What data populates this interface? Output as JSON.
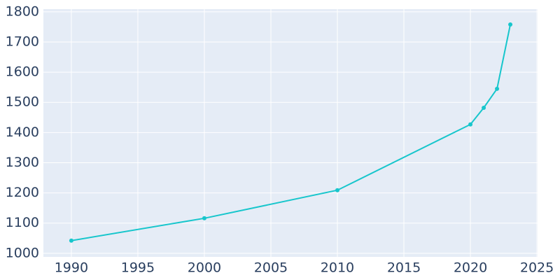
{
  "chart_data": {
    "type": "line",
    "x": [
      1990,
      2000,
      2010,
      2020,
      2021,
      2022,
      2023
    ],
    "series": [
      {
        "color": "#17c6cc",
        "values": [
          1042,
          1116,
          1209,
          1427,
          1482,
          1545,
          1758
        ]
      }
    ],
    "xlim": [
      1987.9,
      2025.05
    ],
    "xticks": [
      1990,
      1995,
      2000,
      2005,
      2010,
      2015,
      2020,
      2025
    ],
    "ylim": [
      988,
      1809
    ],
    "yticks": [
      1000,
      1100,
      1200,
      1300,
      1400,
      1500,
      1600,
      1700,
      1800
    ],
    "grid": true,
    "background": "#e5ecf6"
  }
}
